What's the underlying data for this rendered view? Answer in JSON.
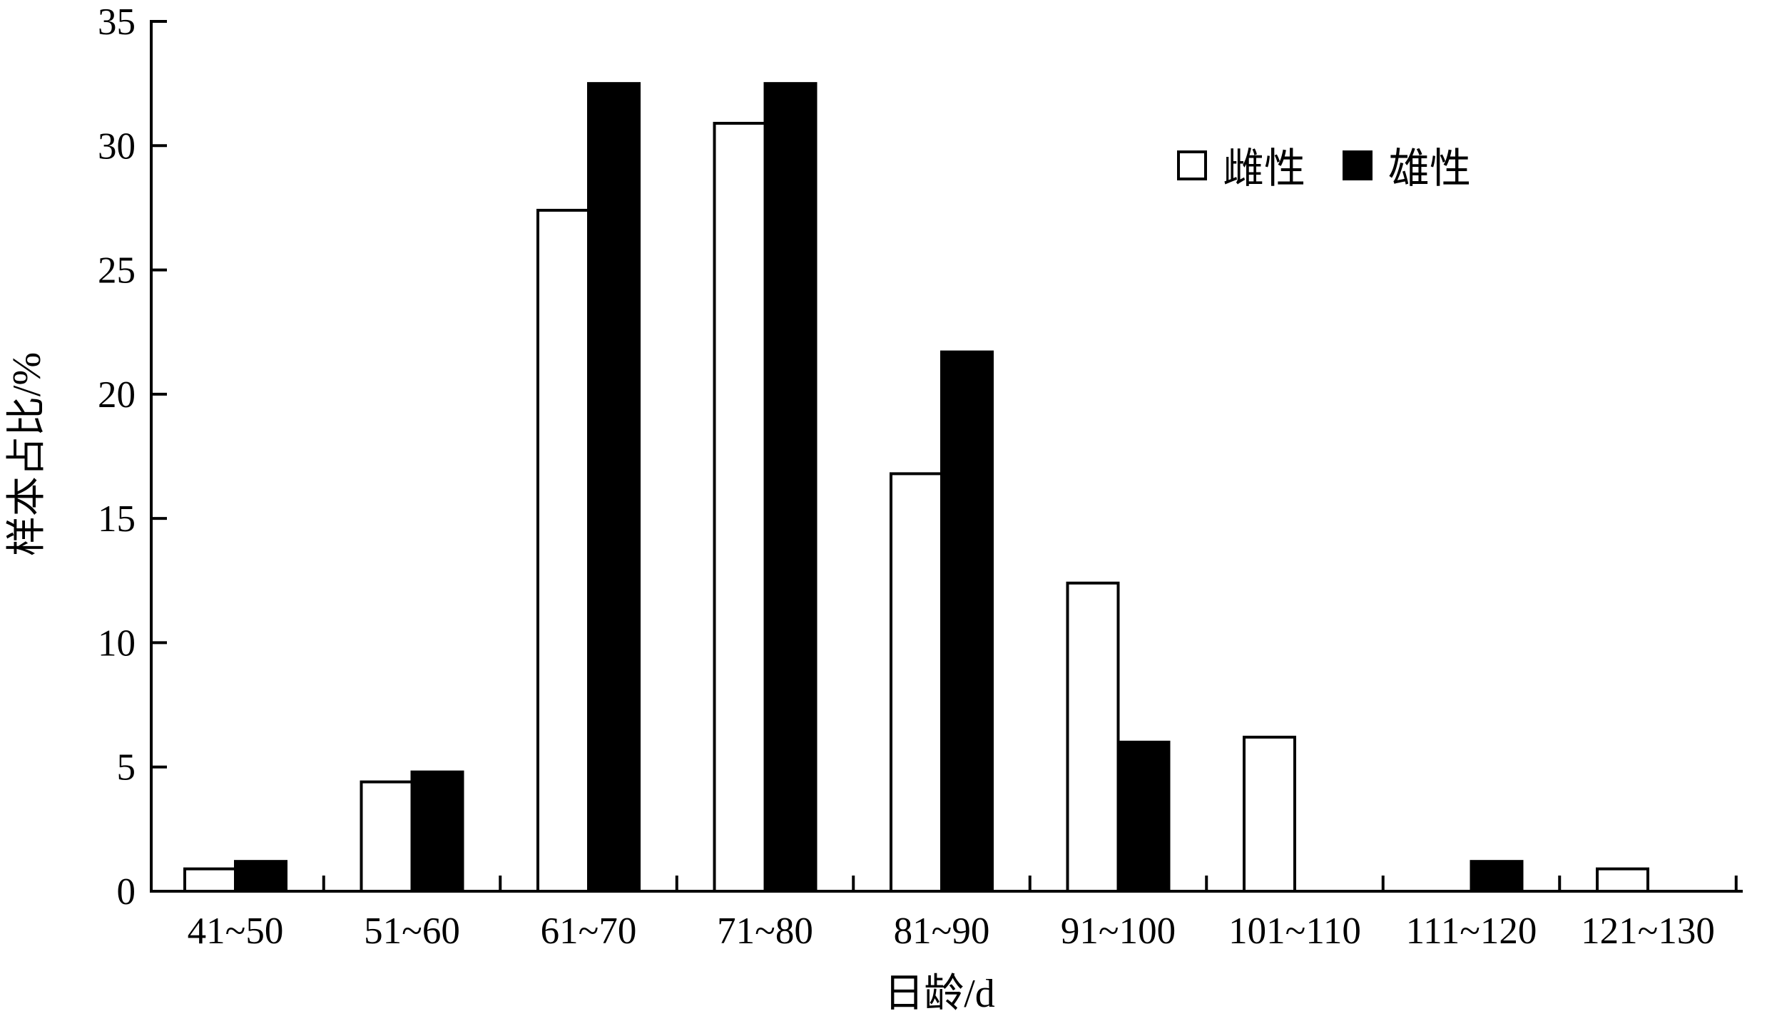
{
  "chart_data": {
    "type": "bar",
    "categories": [
      "41~50",
      "51~60",
      "61~70",
      "71~80",
      "81~90",
      "91~100",
      "101~110",
      "111~120",
      "121~130"
    ],
    "series": [
      {
        "name": "雌性",
        "color": "#ffffff",
        "values": [
          0.9,
          4.4,
          27.4,
          30.9,
          16.8,
          12.4,
          6.2,
          0,
          0.9
        ]
      },
      {
        "name": "雄性",
        "color": "#000000",
        "values": [
          1.2,
          4.8,
          32.5,
          32.5,
          21.7,
          6.0,
          0,
          1.2,
          0
        ]
      }
    ],
    "xlabel": "日龄/d",
    "ylabel": "样本占比/%",
    "ylim": [
      0,
      35
    ],
    "yticks": [
      0,
      5,
      10,
      15,
      20,
      25,
      30,
      35
    ],
    "grid": false,
    "legend_position": "top-right"
  }
}
